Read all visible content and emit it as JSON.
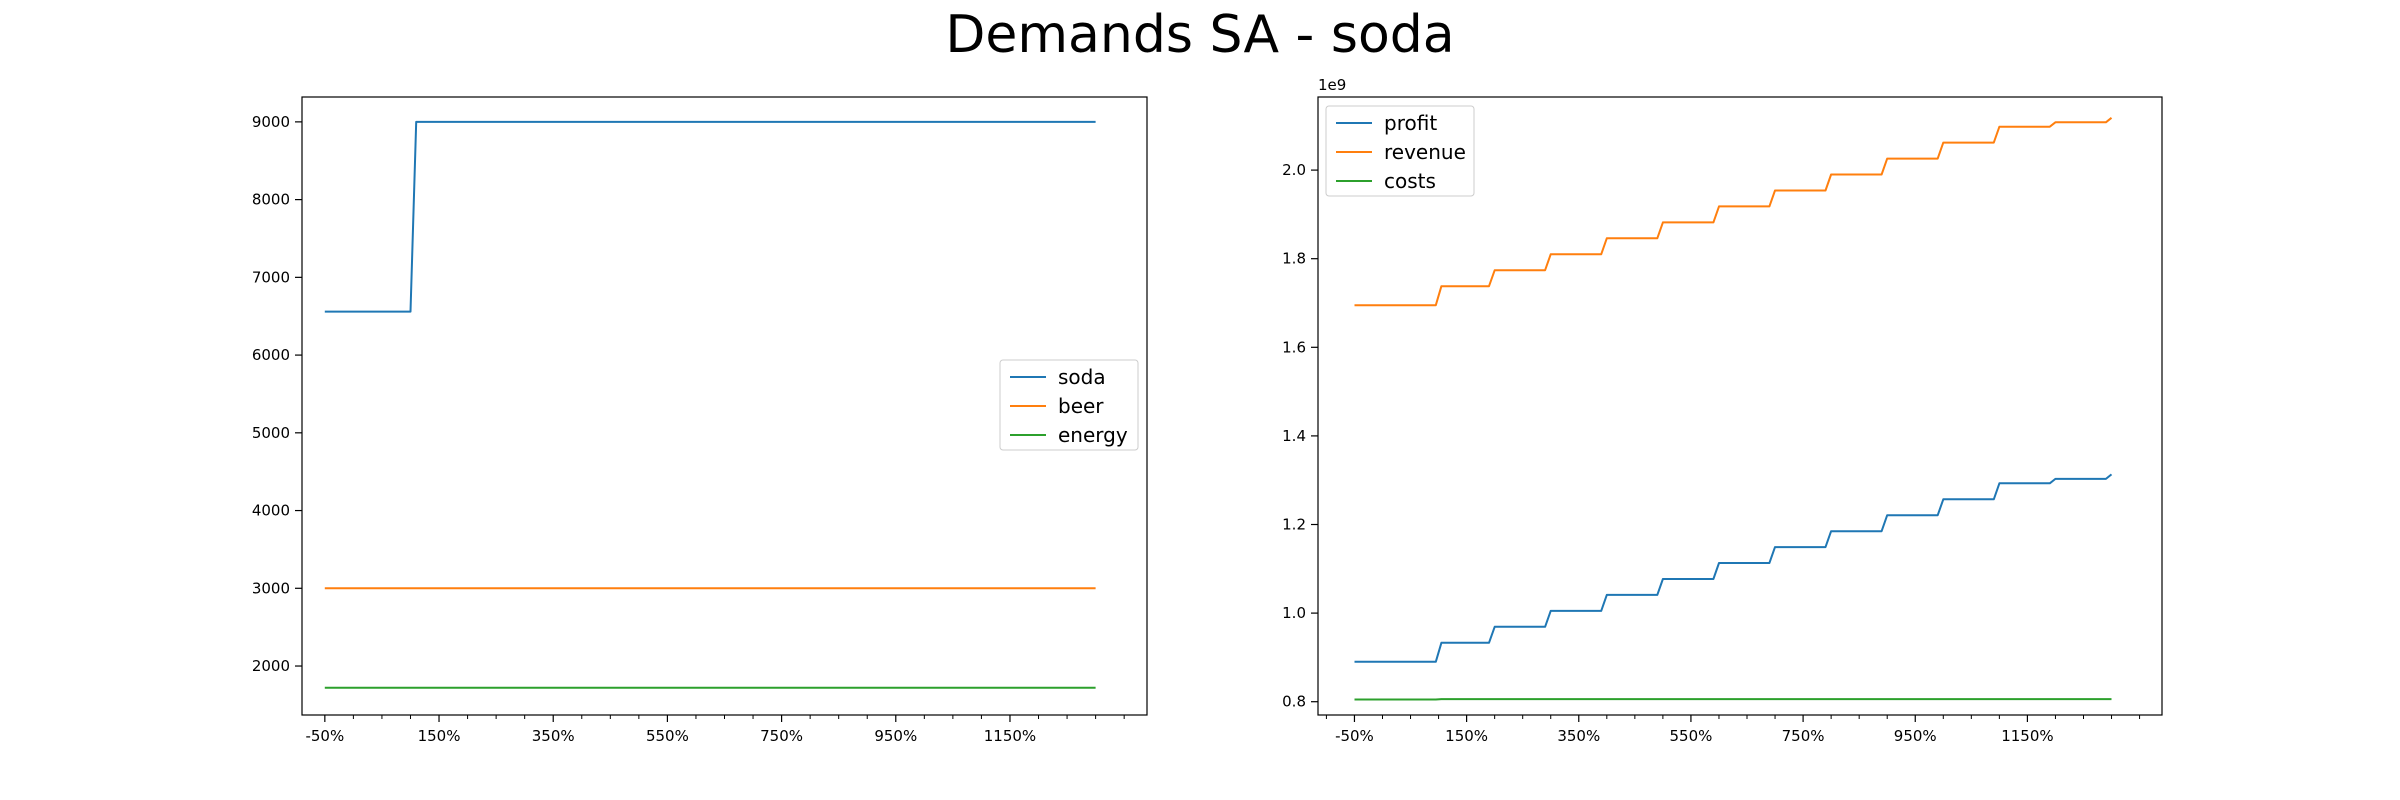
{
  "figure": {
    "title": "Demands SA - soda"
  },
  "chart_data": [
    {
      "type": "line",
      "title": "",
      "xlabel": "",
      "ylabel": "",
      "x_tick_labels": [
        "-50%",
        "150%",
        "350%",
        "550%",
        "750%",
        "950%",
        "1150%"
      ],
      "x_tick_values": [
        -50,
        150,
        350,
        550,
        750,
        950,
        1150
      ],
      "xlim": [
        -90,
        1390
      ],
      "ylim": [
        1370,
        9320
      ],
      "y_ticks": [
        2000,
        3000,
        4000,
        5000,
        6000,
        7000,
        8000,
        9000
      ],
      "y_offset": "",
      "grid": false,
      "legend_position": "center-right",
      "series": [
        {
          "name": "soda",
          "color": "#1f77b4",
          "x": [
            -50,
            100,
            110,
            1300
          ],
          "y": [
            6560,
            6560,
            9000,
            9000
          ]
        },
        {
          "name": "beer",
          "color": "#ff7f0e",
          "x": [
            -50,
            1300
          ],
          "y": [
            3000,
            3000
          ]
        },
        {
          "name": "energy",
          "color": "#2ca02c",
          "x": [
            -50,
            1300
          ],
          "y": [
            1720,
            1720
          ]
        }
      ]
    },
    {
      "type": "line",
      "title": "",
      "xlabel": "",
      "ylabel": "",
      "x_tick_labels": [
        "-50%",
        "150%",
        "350%",
        "550%",
        "750%",
        "950%",
        "1150%"
      ],
      "x_tick_values": [
        -50,
        150,
        350,
        550,
        750,
        950,
        1150
      ],
      "xlim": [
        -115,
        1390
      ],
      "ylim": [
        0.77,
        2.165
      ],
      "y_ticks": [
        0.8,
        1.0,
        1.2,
        1.4,
        1.6,
        1.8,
        2.0
      ],
      "y_tick_labels": [
        "0.8",
        "1.0",
        "1.2",
        "1.4",
        "1.6",
        "1.8",
        "2.0"
      ],
      "y_offset": "1e9",
      "grid": false,
      "legend_position": "top-left",
      "series": [
        {
          "name": "profit",
          "color": "#1f77b4",
          "x": [
            -50,
            95,
            105,
            190,
            200,
            290,
            300,
            390,
            400,
            490,
            500,
            590,
            600,
            690,
            700,
            790,
            800,
            890,
            900,
            990,
            1000,
            1090,
            1100,
            1190,
            1200,
            1290,
            1300
          ],
          "y": [
            0.89,
            0.89,
            0.933,
            0.933,
            0.969,
            0.969,
            1.005,
            1.005,
            1.041,
            1.041,
            1.077,
            1.077,
            1.113,
            1.113,
            1.149,
            1.149,
            1.185,
            1.185,
            1.221,
            1.221,
            1.257,
            1.257,
            1.293,
            1.293,
            1.303,
            1.303,
            1.313
          ]
        },
        {
          "name": "revenue",
          "color": "#ff7f0e",
          "x": [
            -50,
            95,
            105,
            190,
            200,
            290,
            300,
            390,
            400,
            490,
            500,
            590,
            600,
            690,
            700,
            790,
            800,
            890,
            900,
            990,
            1000,
            1090,
            1100,
            1190,
            1200,
            1290,
            1300
          ],
          "y": [
            1.695,
            1.695,
            1.738,
            1.738,
            1.774,
            1.774,
            1.81,
            1.81,
            1.846,
            1.846,
            1.882,
            1.882,
            1.918,
            1.918,
            1.954,
            1.954,
            1.99,
            1.99,
            2.026,
            2.026,
            2.062,
            2.062,
            2.098,
            2.098,
            2.108,
            2.108,
            2.118
          ]
        },
        {
          "name": "costs",
          "color": "#2ca02c",
          "x": [
            -50,
            95,
            105,
            1300
          ],
          "y": [
            0.805,
            0.805,
            0.806,
            0.806
          ]
        }
      ]
    }
  ]
}
